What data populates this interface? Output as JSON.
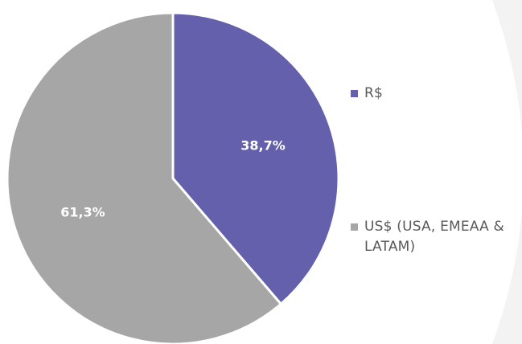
{
  "chart_data": {
    "type": "pie",
    "title": "",
    "slices": [
      {
        "label": "R$",
        "value": 38.7,
        "display": "38,7%",
        "color": "#6460ab"
      },
      {
        "label": "US$ (USA, EMEAA & LATAM)",
        "value": 61.3,
        "display": "61,3%",
        "color": "#a6a6a6"
      }
    ],
    "start_angle": "12 o'clock",
    "direction": "clockwise",
    "legend_position": "right",
    "slice_border_color": "#ffffff"
  },
  "legend": {
    "items": [
      {
        "label": "R$",
        "color": "#6460ab"
      },
      {
        "label": "US$ (USA, EMEAA & LATAM)",
        "color": "#a6a6a6"
      }
    ]
  },
  "background": {
    "color": "#ffffff",
    "accent_color": "#f3f3f3"
  }
}
